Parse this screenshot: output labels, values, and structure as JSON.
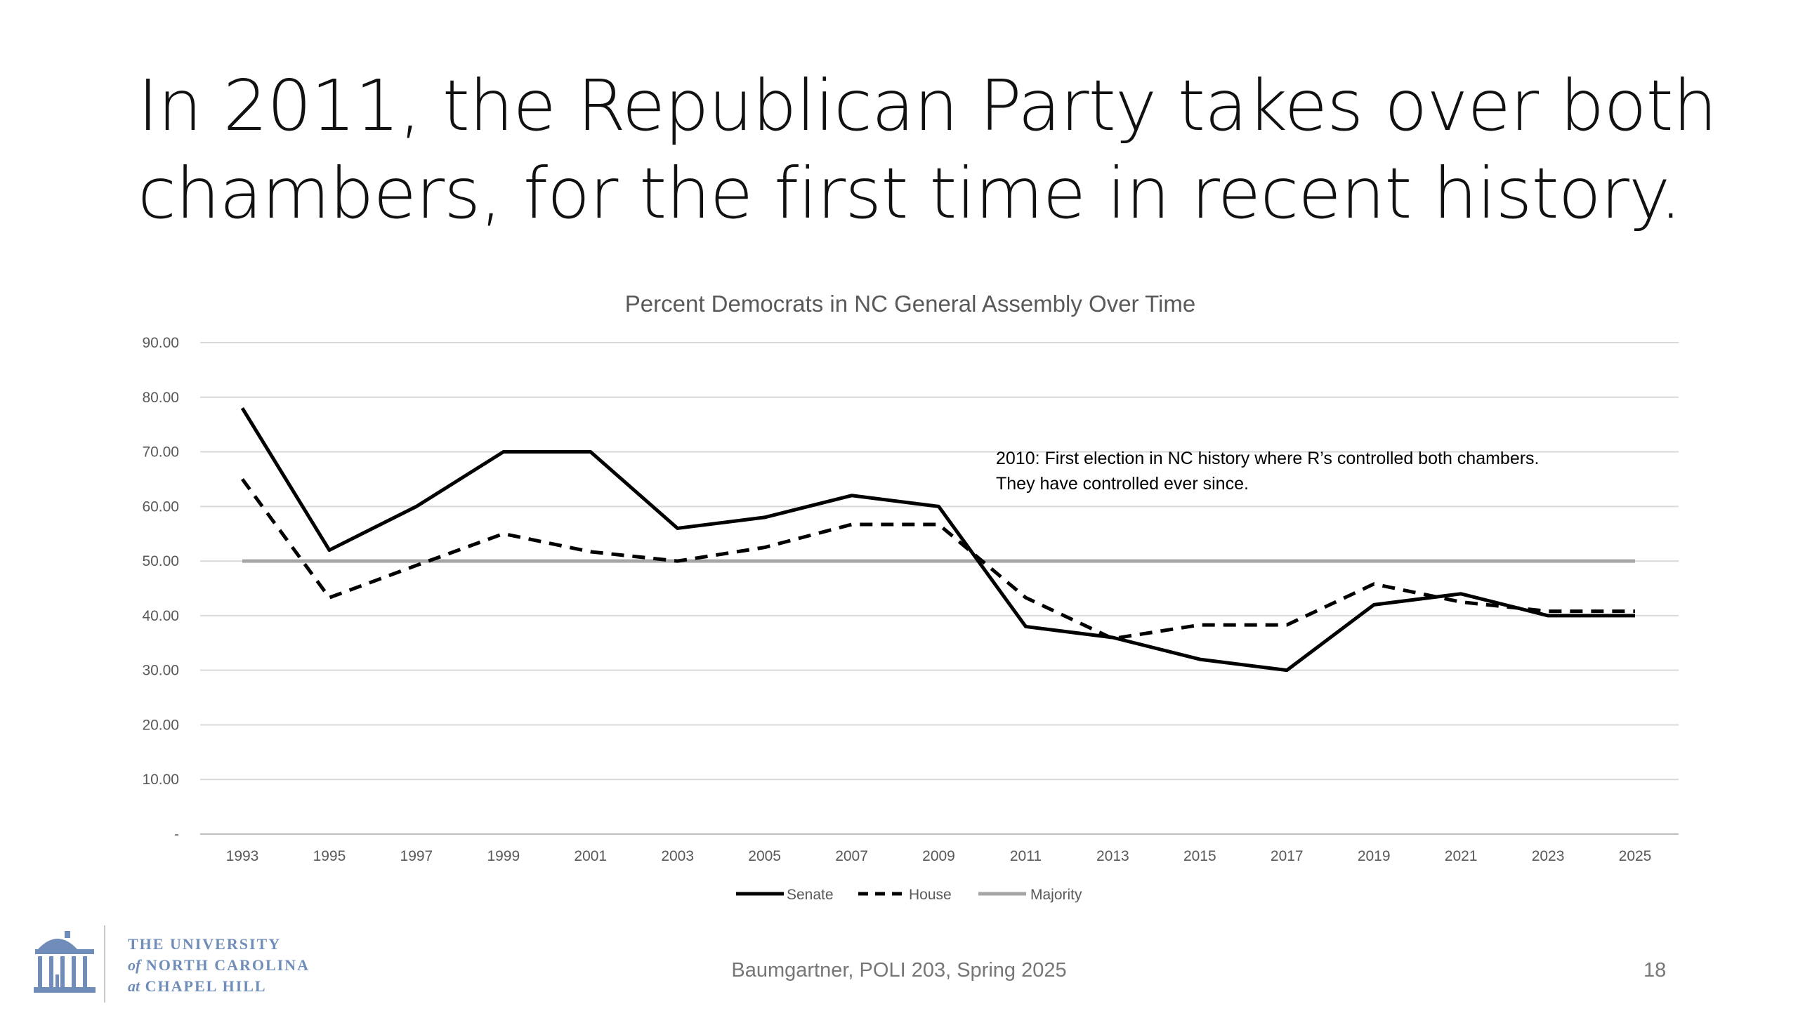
{
  "slide": {
    "title_lines": [
      "In 2011, the Republican Party takes over both",
      "chambers, for the first time in recent history."
    ],
    "footer": "Baumgartner, POLI 203, Spring 2025",
    "slide_number": "18"
  },
  "logo": {
    "icon": "old-well-icon",
    "line1": "THE UNIVERSITY",
    "line2_prefix": "of",
    "line2_rest": "NORTH CAROLINA",
    "line3_prefix": "at",
    "line3_rest": "CHAPEL HILL",
    "color": "#6f8db8"
  },
  "chart_data": {
    "type": "line",
    "title": "Percent Democrats in NC General Assembly Over Time",
    "xlabel": "",
    "ylabel": "",
    "categories": [
      "1993",
      "1995",
      "1997",
      "1999",
      "2001",
      "2003",
      "2005",
      "2007",
      "2009",
      "2011",
      "2013",
      "2015",
      "2017",
      "2019",
      "2021",
      "2023",
      "2025"
    ],
    "y_ticks": [
      "-",
      "10.00",
      "20.00",
      "30.00",
      "40.00",
      "50.00",
      "60.00",
      "70.00",
      "80.00",
      "90.00"
    ],
    "ylim": [
      0,
      90
    ],
    "grid": true,
    "legend_position": "bottom",
    "series": [
      {
        "name": "Senate",
        "style": "solid",
        "color": "#000000",
        "values": [
          78,
          52,
          60,
          70,
          70,
          56,
          58,
          62,
          60,
          38,
          36,
          32,
          30,
          42,
          44,
          40,
          40
        ]
      },
      {
        "name": "House",
        "style": "dashed",
        "color": "#000000",
        "values": [
          65,
          43.3,
          49.2,
          55,
          51.7,
          50,
          52.5,
          56.7,
          56.7,
          43.3,
          35.8,
          38.3,
          38.3,
          45.8,
          42.5,
          40.8,
          40.8
        ]
      },
      {
        "name": "Majority",
        "style": "solid",
        "color": "#a6a6a6",
        "values": [
          50,
          50,
          50,
          50,
          50,
          50,
          50,
          50,
          50,
          50,
          50,
          50,
          50,
          50,
          50,
          50,
          50
        ]
      }
    ],
    "annotation": [
      "2010: First election in NC history where R’s controlled both chambers.",
      "They have controlled ever since."
    ]
  }
}
